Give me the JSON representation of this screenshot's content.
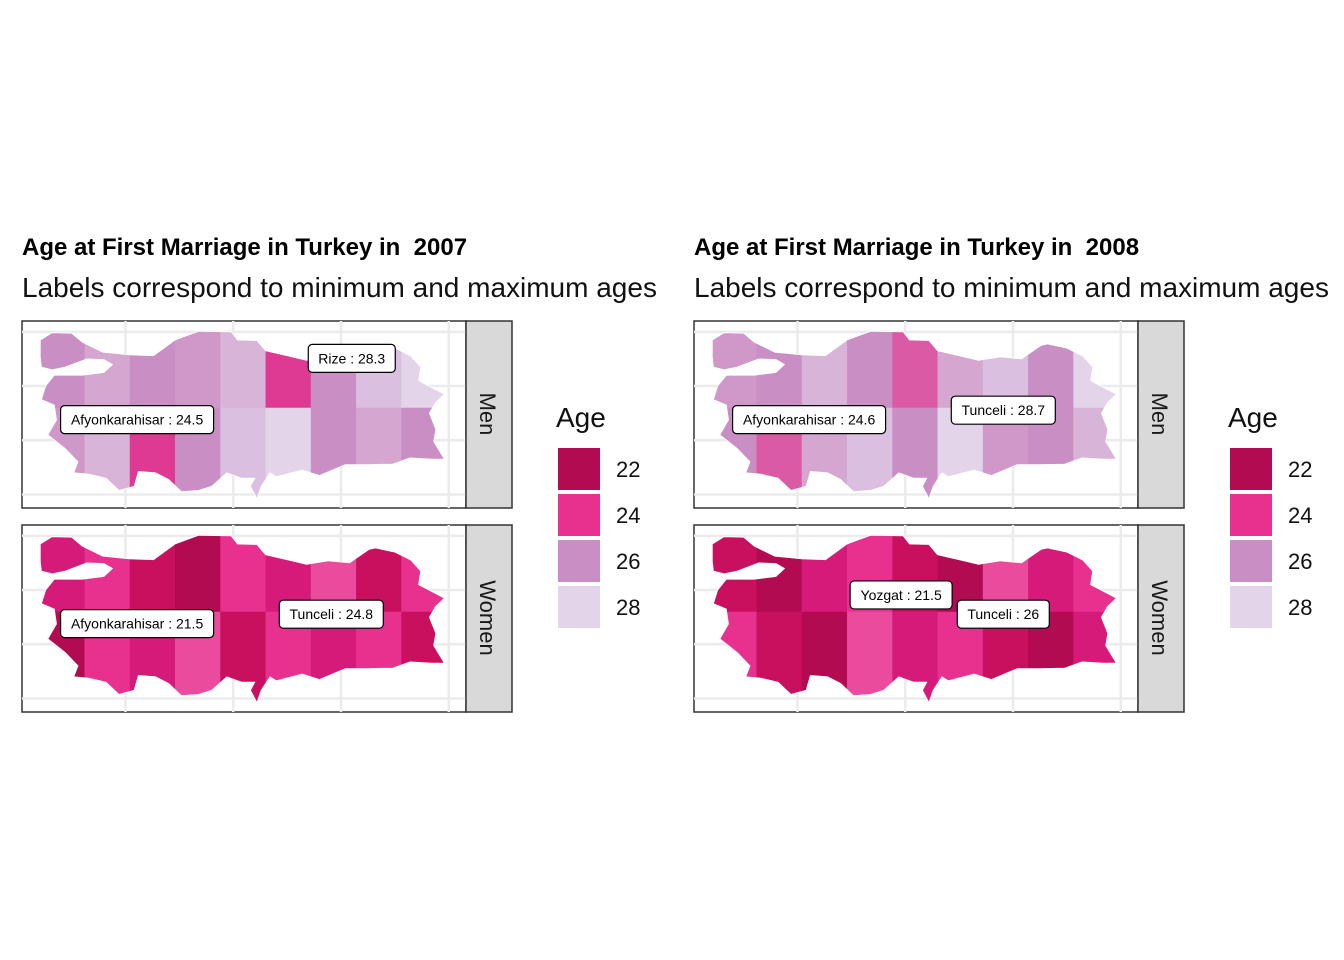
{
  "legend": {
    "title": "Age",
    "items": [
      {
        "label": "22",
        "color": "#b20b52"
      },
      {
        "label": "24",
        "color": "#e8318f"
      },
      {
        "label": "26",
        "color": "#c98ec4"
      },
      {
        "label": "28",
        "color": "#e3d4e9"
      }
    ]
  },
  "maps": [
    {
      "title": "Age at First Marriage in Turkey in  2007",
      "subtitle": "Labels correspond to minimum and maximum ages",
      "facets": [
        {
          "strip": "Men",
          "palette": [
            "#c98ec4",
            "#d4a6d0",
            "#c98ec4",
            "#cf98c8",
            "#d8b4d8",
            "#de3a94",
            "#c98ec4",
            "#dbbfe0",
            "#e3d4e9"
          ],
          "labels": [
            {
              "province": "Rize",
              "value": "28.3",
              "text": "Rize  : 28.3",
              "lon": 40.5,
              "lat": 41.02
            },
            {
              "province": "Afyonkarahisar",
              "value": "24.5",
              "text": "Afyonkarahisar  : 24.5",
              "lon": 30.54,
              "lat": 38.76
            }
          ]
        },
        {
          "strip": "Women",
          "palette": [
            "#d61a7a",
            "#e8318f",
            "#c9105f",
            "#b20b52",
            "#e8318f",
            "#d61a7a",
            "#ea4b9d",
            "#c9105f",
            "#e8318f"
          ],
          "labels": [
            {
              "province": "Tunceli",
              "value": "24.8",
              "text": "Tunceli  : 24.8",
              "lon": 39.55,
              "lat": 39.11
            },
            {
              "province": "Afyonkarahisar",
              "value": "21.5",
              "text": "Afyonkarahisar  : 21.5",
              "lon": 30.54,
              "lat": 38.76
            }
          ]
        }
      ]
    },
    {
      "title": "Age at First Marriage in Turkey in  2008",
      "subtitle": "Labels correspond to minimum and maximum ages",
      "facets": [
        {
          "strip": "Men",
          "palette": [
            "#cf98c8",
            "#c98ec4",
            "#d8b4d8",
            "#c98ec4",
            "#db5aa6",
            "#d4a6d0",
            "#dbbfe0",
            "#c98ec4",
            "#e3d4e9"
          ],
          "labels": [
            {
              "province": "Tunceli",
              "value": "28.7",
              "text": "Tunceli  : 28.7",
              "lon": 39.55,
              "lat": 39.11
            },
            {
              "province": "Afyonkarahisar",
              "value": "24.6",
              "text": "Afyonkarahisar  : 24.6",
              "lon": 30.54,
              "lat": 38.76
            }
          ]
        },
        {
          "strip": "Women",
          "palette": [
            "#c9105f",
            "#b20b52",
            "#d61a7a",
            "#e8318f",
            "#c9105f",
            "#b20b52",
            "#ea4b9d",
            "#d61a7a",
            "#e8318f"
          ],
          "labels": [
            {
              "province": "Yozgat",
              "value": "21.5",
              "text": "Yozgat  : 21.5",
              "lon": 34.81,
              "lat": 39.82
            },
            {
              "province": "Tunceli",
              "value": "26",
              "text": "Tunceli  : 26",
              "lon": 39.55,
              "lat": 39.11
            }
          ]
        }
      ]
    }
  ]
}
